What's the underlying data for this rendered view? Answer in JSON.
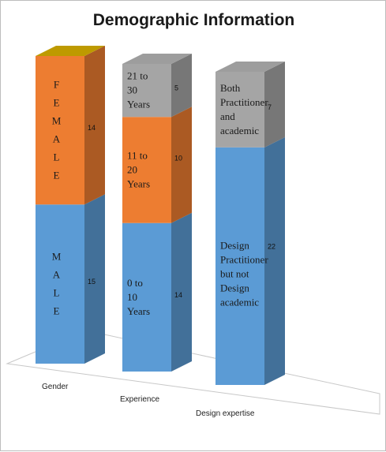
{
  "chart_data": {
    "type": "bar",
    "stacked": true,
    "three_d": true,
    "title": "Demographic Information",
    "categories": [
      "Gender",
      "Experience",
      "Design expertise"
    ],
    "stacks": [
      {
        "category": "Gender",
        "segments": [
          {
            "label": "M\nA\nL\nE",
            "value": 15,
            "color": "#5b9bd5"
          },
          {
            "label": "F\nE\nM\nA\nL\nE",
            "value": 14,
            "color": "#ed7d31"
          },
          {
            "label": "",
            "value": 0,
            "color": "#c8a200"
          }
        ]
      },
      {
        "category": "Experience",
        "segments": [
          {
            "label": "0 to\n10\nYears",
            "value": 14,
            "color": "#5b9bd5"
          },
          {
            "label": "11 to\n20\nYears",
            "value": 10,
            "color": "#ed7d31"
          },
          {
            "label": "21 to\n30\nYears",
            "value": 5,
            "color": "#a5a5a5"
          }
        ]
      },
      {
        "category": "Design expertise",
        "segments": [
          {
            "label": "Design\nPractitioner\nbut not\nDesign\nacademic",
            "value": 22,
            "color": "#5b9bd5"
          },
          {
            "label": "Both\nPractitioner\nand\nacademic",
            "value": 7,
            "color": "#a5a5a5"
          }
        ]
      }
    ],
    "ylim": [
      0,
      29
    ],
    "grid": false,
    "legend": "none"
  }
}
